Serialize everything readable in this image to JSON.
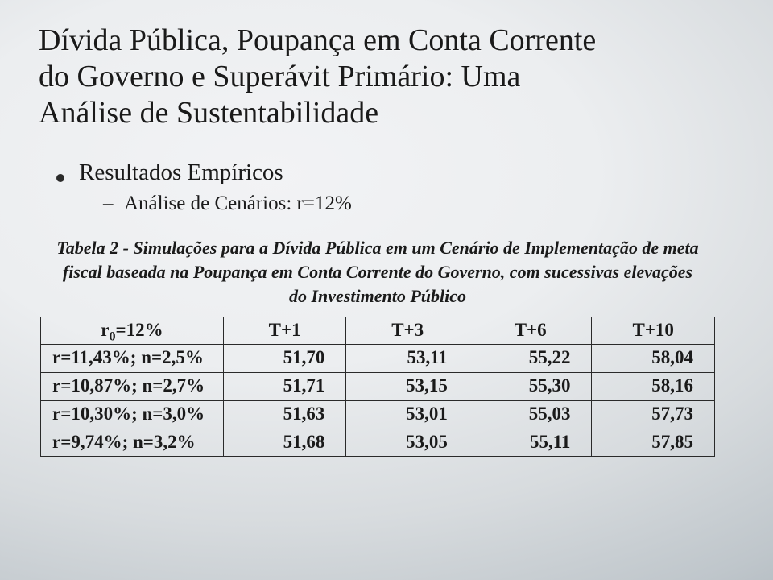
{
  "title_line1": "Dívida Pública, Poupança em Conta Corrente",
  "title_line2": "do Governo e Superávit Primário: Uma",
  "title_line3": "Análise de Sustentabilidade",
  "bullet1": "Resultados Empíricos",
  "bullet2": "Análise de Cenários: r=12%",
  "caption_l1": "Tabela 2 - Simulações para a Dívida Pública em um Cenário de Implementação de meta",
  "caption_l2": "fiscal baseada na Poupança em Conta Corrente do Governo, com sucessivas elevações",
  "caption_l3": "do Investimento Público",
  "table": {
    "head_r0_pre": "r",
    "head_r0_sub": "0",
    "head_r0_post": "=12%",
    "cols": [
      "T+1",
      "T+3",
      "T+6",
      "T+10"
    ],
    "rows": [
      {
        "label": "r=11,43%; n=2,5%",
        "vals": [
          "51,70",
          "53,11",
          "55,22",
          "58,04"
        ]
      },
      {
        "label": "r=10,87%; n=2,7%",
        "vals": [
          "51,71",
          "53,15",
          "55,30",
          "58,16"
        ]
      },
      {
        "label": "r=10,30%; n=3,0%",
        "vals": [
          "51,63",
          "53,01",
          "55,03",
          "57,73"
        ]
      },
      {
        "label": "r=9,74%; n=3,2%",
        "vals": [
          "51,68",
          "53,05",
          "55,11",
          "57,85"
        ]
      }
    ]
  }
}
